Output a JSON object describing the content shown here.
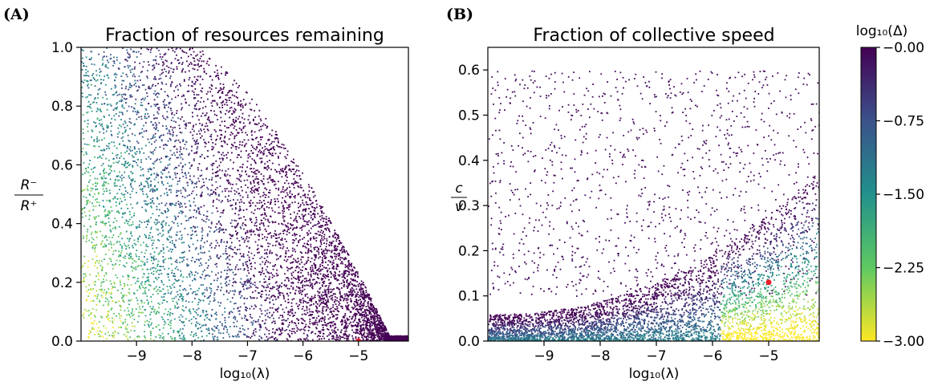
{
  "panels": {
    "a": {
      "letter": "(A)"
    },
    "b": {
      "letter": "(B)"
    }
  },
  "colorbar": {
    "label": "log₁₀(Δ)",
    "ticks": [
      {
        "value": 0.0,
        "label": "−0.00"
      },
      {
        "value": -0.75,
        "label": "−0.75"
      },
      {
        "value": -1.5,
        "label": "−1.50"
      },
      {
        "value": -2.25,
        "label": "−2.25"
      },
      {
        "value": -3.0,
        "label": "−3.00"
      }
    ],
    "range": [
      -3.0,
      0.0
    ],
    "colors": [
      "#fde725",
      "#5ec962",
      "#21918c",
      "#3b528b",
      "#440154"
    ]
  },
  "chart_data": [
    {
      "type": "scatter",
      "title": "Fraction of resources remaining",
      "xlabel": "log₁₀(λ)",
      "ylabel_num": "R⁻",
      "ylabel_den": "R⁺",
      "xlim": [
        -10.0,
        -4.1
      ],
      "ylim": [
        0.0,
        1.0
      ],
      "xticks": [
        {
          "value": -9,
          "label": "−9"
        },
        {
          "value": -8,
          "label": "−8"
        },
        {
          "value": -7,
          "label": "−7"
        },
        {
          "value": -6,
          "label": "−6"
        },
        {
          "value": -5,
          "label": "−5"
        }
      ],
      "yticks": [
        {
          "value": 0.0,
          "label": "0.0"
        },
        {
          "value": 0.2,
          "label": "0.2"
        },
        {
          "value": 0.4,
          "label": "0.4"
        },
        {
          "value": 0.6,
          "label": "0.6"
        },
        {
          "value": 0.8,
          "label": "0.8"
        },
        {
          "value": 1.0,
          "label": "1.0"
        }
      ],
      "color_by": "log₁₀(Δ)",
      "highlight_point": {
        "x": -5.0,
        "y": 0.0,
        "color": "#e8202a"
      },
      "density_note": "dense cloud; values approach 1 at low λ and fall to ~0 near λ=10^-4.3"
    },
    {
      "type": "scatter",
      "title": "Fraction of collective speed",
      "xlabel": "log₁₀(λ)",
      "ylabel_num": "c",
      "ylabel_den": "v",
      "xlim": [
        -10.0,
        -4.1
      ],
      "ylim": [
        0.0,
        0.65
      ],
      "xticks": [
        {
          "value": -9,
          "label": "−9"
        },
        {
          "value": -8,
          "label": "−8"
        },
        {
          "value": -7,
          "label": "−7"
        },
        {
          "value": -6,
          "label": "−6"
        },
        {
          "value": -5,
          "label": "−5"
        }
      ],
      "yticks": [
        {
          "value": 0.0,
          "label": "0.0"
        },
        {
          "value": 0.1,
          "label": "0.1"
        },
        {
          "value": 0.2,
          "label": "0.2"
        },
        {
          "value": 0.3,
          "label": "0.3"
        },
        {
          "value": 0.4,
          "label": "0.4"
        },
        {
          "value": 0.5,
          "label": "0.5"
        },
        {
          "value": 0.6,
          "label": "0.6"
        }
      ],
      "color_by": "log₁₀(Δ)",
      "highlight_point": {
        "x": -5.0,
        "y": 0.13,
        "color": "#e8202a"
      }
    }
  ]
}
